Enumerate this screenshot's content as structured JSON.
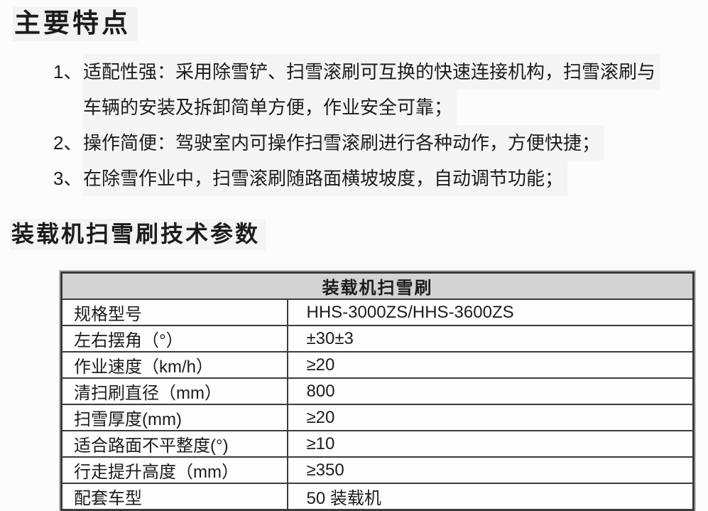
{
  "doc": {
    "features_title": "主要特点",
    "features": [
      {
        "num": "1、",
        "line1": "适配性强：采用除雪铲、扫雪滚刷可互换的快速连接机构，扫雪滚刷与",
        "line2": "车辆的安装及拆卸简单方便，作业安全可靠；"
      },
      {
        "num": "2、",
        "line1": "操作简便：驾驶室内可操作扫雪滚刷进行各种动作，方便快捷；"
      },
      {
        "num": "3、",
        "line1": "在除雪作业中，扫雪滚刷随路面横坡坡度，自动调节功能；"
      }
    ],
    "specs_title": "装载机扫雪刷技术参数",
    "table": {
      "header": "装载机扫雪刷",
      "rows": [
        {
          "label": "规格型号",
          "value": "HHS-3000ZS/HHS-3600ZS"
        },
        {
          "label": "左右摆角（°）",
          "value": "±30±3"
        },
        {
          "label": "作业速度（km/h）",
          "value": "≥20"
        },
        {
          "label": "清扫刷直径（mm）",
          "value": "800"
        },
        {
          "label": "扫雪厚度(mm)",
          "value": "≥20"
        },
        {
          "label": "适合路面不平整度(°)",
          "value": "≥10"
        },
        {
          "label": "行走提升高度（mm）",
          "value": "≥350"
        },
        {
          "label": "配套车型",
          "value": "50 装载机"
        }
      ]
    },
    "colors": {
      "table_header_bg": "#d3d3d3",
      "table_border": "#3b3b3b",
      "text": "#1c1c1c",
      "page_bg": "#fcfcfc"
    }
  }
}
